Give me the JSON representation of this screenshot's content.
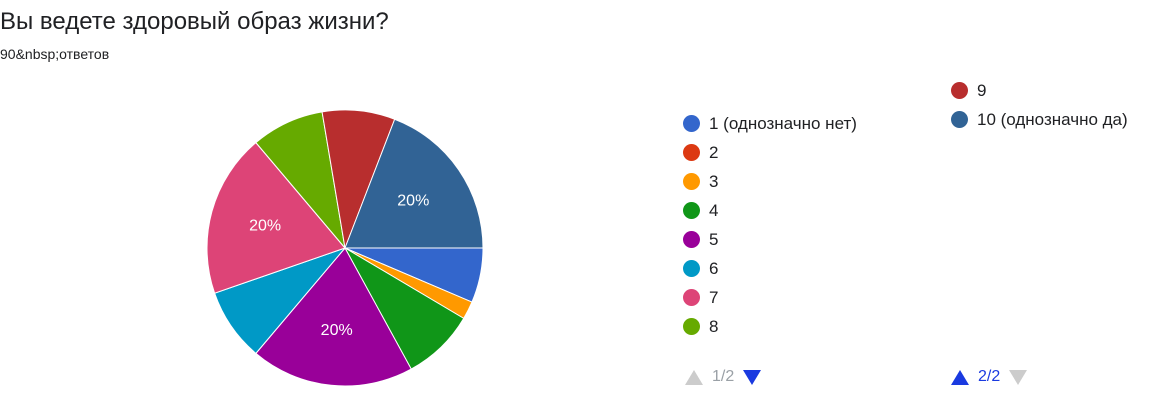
{
  "title": "Вы ведете здоровый образ жизни?",
  "subtitle": "90&nbsp;ответов",
  "chart_data": {
    "type": "pie",
    "categories": [
      "1 (однозначно нет)",
      "2",
      "3",
      "4",
      "5",
      "6",
      "7",
      "8",
      "9",
      "10 (однозначно да)"
    ],
    "values": [
      6.7,
      0,
      2.2,
      8.9,
      20,
      8.9,
      20,
      8.9,
      8.9,
      20
    ],
    "colors": [
      "#3366cc",
      "#dc3912",
      "#ff9900",
      "#109618",
      "#990099",
      "#0099c6",
      "#dd4477",
      "#66aa00",
      "#b82e2e",
      "#316395"
    ],
    "data_labels": [
      "",
      "",
      "",
      "",
      "20%",
      "",
      "20%",
      "",
      "",
      "20%"
    ],
    "legend_position": "right"
  },
  "legend": {
    "page1": [
      {
        "label": "1 (однозначно нет)",
        "color": "#3366cc"
      },
      {
        "label": "2",
        "color": "#dc3912"
      },
      {
        "label": "3",
        "color": "#ff9900"
      },
      {
        "label": "4",
        "color": "#109618"
      },
      {
        "label": "5",
        "color": "#990099"
      },
      {
        "label": "6",
        "color": "#0099c6"
      },
      {
        "label": "7",
        "color": "#dd4477"
      },
      {
        "label": "8",
        "color": "#66aa00"
      }
    ],
    "page2": [
      {
        "label": "9",
        "color": "#b82e2e"
      },
      {
        "label": "10 (однозначно да)",
        "color": "#316395"
      }
    ]
  },
  "pager1": {
    "text": "1/2",
    "up_color": "#cccccc",
    "down_color": "#1a3ae0"
  },
  "pager2": {
    "text": "2/2",
    "up_color": "#1a3ae0",
    "down_color": "#cccccc"
  }
}
